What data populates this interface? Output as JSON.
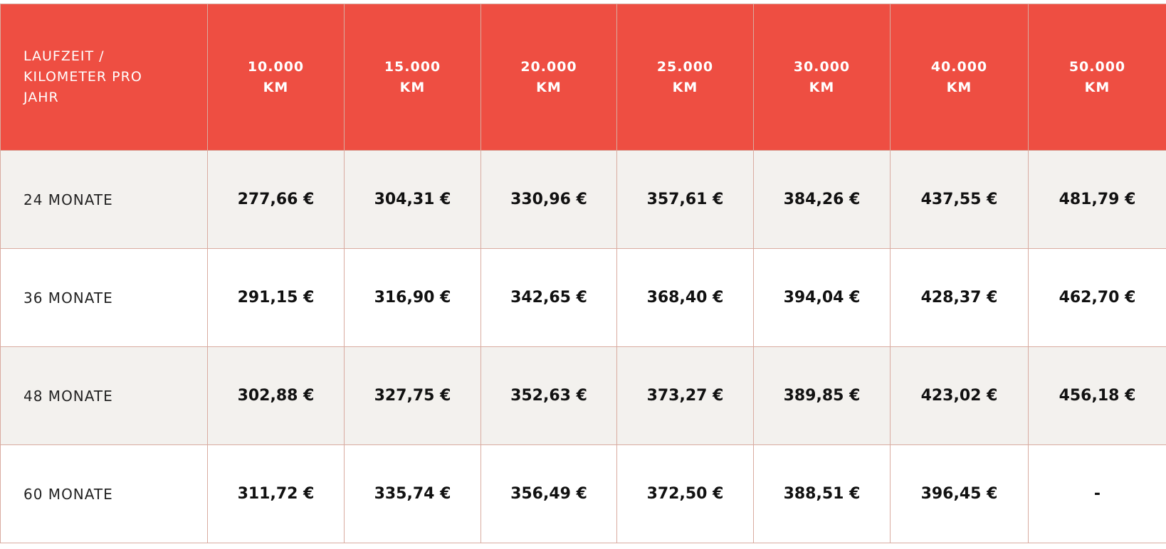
{
  "table": {
    "header": [
      "LAUFZEIT / KILOMETER PRO JAHR",
      "10.000 KM",
      "15.000 KM",
      "20.000 KM",
      "25.000 KM",
      "30.000 KM",
      "40.000 KM",
      "50.000 KM"
    ],
    "rows": [
      [
        "24 MONATE",
        "277,66 €",
        "304,31 €",
        "330,96 €",
        "357,61 €",
        "384,26 €",
        "437,55 €",
        "481,79 €"
      ],
      [
        "36 MONATE",
        "291,15 €",
        "316,90 €",
        "342,65 €",
        "368,40 €",
        "394,04 €",
        "428,37 €",
        "462,70 €"
      ],
      [
        "48 MONATE",
        "302,88 €",
        "327,75 €",
        "352,63 €",
        "373,27 €",
        "389,85 €",
        "423,02 €",
        "456,18 €"
      ],
      [
        "60 MONATE",
        "311,72 €",
        "335,74 €",
        "356,49 €",
        "372,50 €",
        "388,51 €",
        "396,45 €",
        "-"
      ]
    ]
  }
}
